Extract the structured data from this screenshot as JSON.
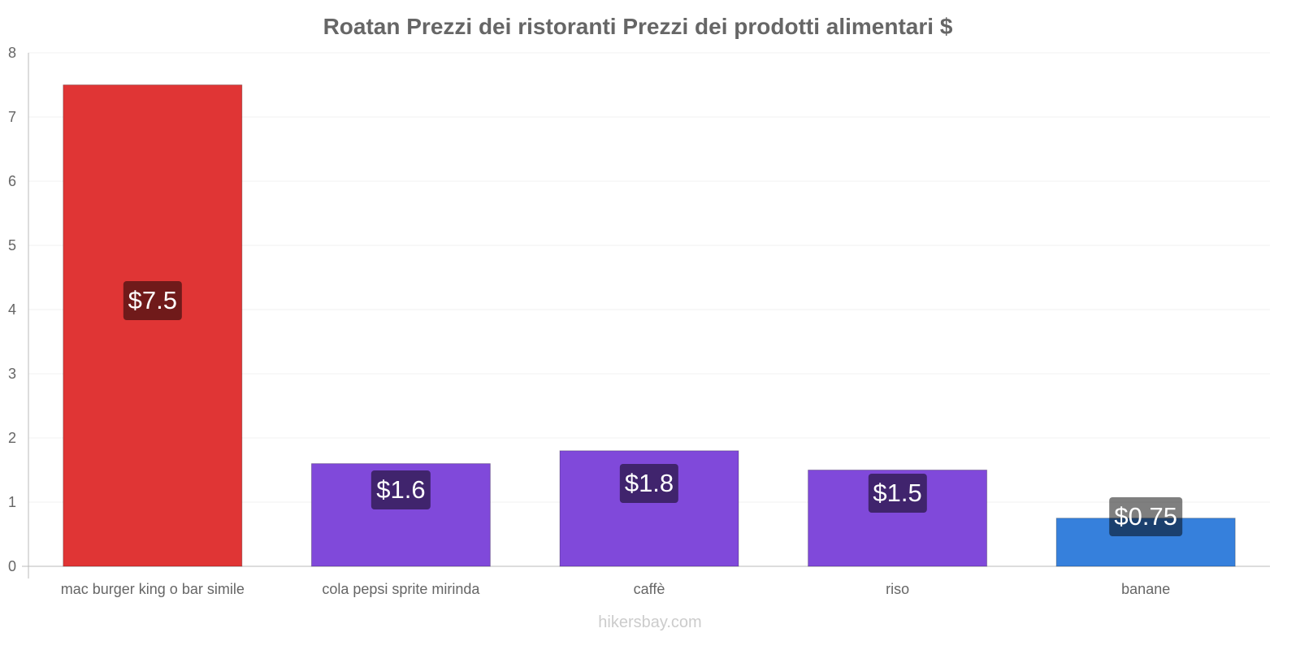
{
  "chart_data": {
    "type": "bar",
    "title": "Roatan Prezzi dei ristoranti Prezzi dei prodotti alimentari $",
    "categories": [
      "mac burger king o bar simile",
      "cola pepsi sprite mirinda",
      "caffè",
      "riso",
      "banane"
    ],
    "values": [
      7.5,
      1.6,
      1.8,
      1.5,
      0.75
    ],
    "value_labels": [
      "$7.5",
      "$1.6",
      "$1.8",
      "$1.5",
      "$0.75"
    ],
    "colors": [
      "#e03535",
      "#8049da",
      "#8049da",
      "#8049da",
      "#3680dc"
    ],
    "ylim": [
      0,
      8
    ],
    "yticks": [
      "0",
      "1",
      "2",
      "3",
      "4",
      "5",
      "6",
      "7",
      "8"
    ],
    "xlabel": "",
    "ylabel": "",
    "grid": true
  },
  "watermark": "hikersbay.com"
}
